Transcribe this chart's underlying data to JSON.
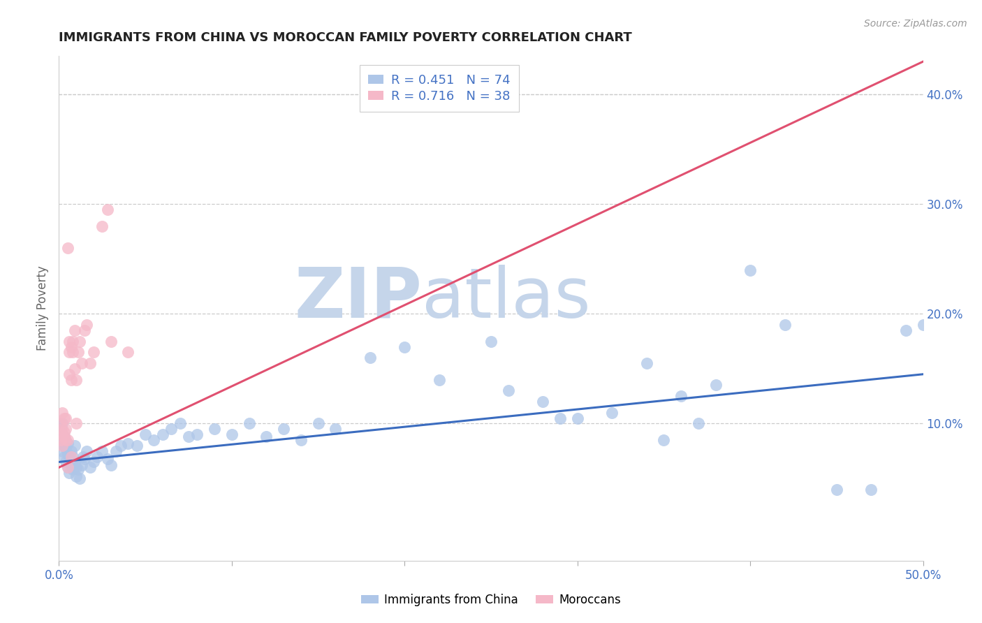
{
  "title": "IMMIGRANTS FROM CHINA VS MOROCCAN FAMILY POVERTY CORRELATION CHART",
  "source": "Source: ZipAtlas.com",
  "ylabel": "Family Poverty",
  "xlim": [
    0.0,
    0.5
  ],
  "ylim": [
    -0.025,
    0.435
  ],
  "legend_r1": "R = 0.451",
  "legend_n1": "N = 74",
  "legend_r2": "R = 0.716",
  "legend_n2": "N = 38",
  "color_china": "#aec6e8",
  "color_morocco": "#f5b8c8",
  "color_china_line": "#3b6cbf",
  "color_morocco_line": "#e05070",
  "color_text_blue": "#4472c4",
  "watermark_ZIP": "ZIP",
  "watermark_atlas": "atlas",
  "watermark_color": "#ccddf0",
  "china_line_x0": 0.0,
  "china_line_x1": 0.5,
  "china_line_y0": 0.065,
  "china_line_y1": 0.145,
  "morocco_line_x0": 0.0,
  "morocco_line_x1": 0.5,
  "morocco_line_y0": 0.06,
  "morocco_line_y1": 0.43,
  "china_x": [
    0.001,
    0.001,
    0.002,
    0.002,
    0.002,
    0.003,
    0.003,
    0.003,
    0.004,
    0.004,
    0.005,
    0.005,
    0.005,
    0.006,
    0.006,
    0.007,
    0.007,
    0.008,
    0.008,
    0.009,
    0.009,
    0.01,
    0.01,
    0.011,
    0.012,
    0.013,
    0.014,
    0.015,
    0.016,
    0.018,
    0.02,
    0.022,
    0.025,
    0.028,
    0.03,
    0.033,
    0.036,
    0.04,
    0.045,
    0.05,
    0.055,
    0.06,
    0.065,
    0.07,
    0.075,
    0.08,
    0.09,
    0.1,
    0.11,
    0.12,
    0.13,
    0.14,
    0.15,
    0.16,
    0.18,
    0.2,
    0.22,
    0.25,
    0.26,
    0.28,
    0.29,
    0.3,
    0.32,
    0.34,
    0.35,
    0.36,
    0.37,
    0.38,
    0.4,
    0.42,
    0.45,
    0.47,
    0.49,
    0.5
  ],
  "china_y": [
    0.085,
    0.095,
    0.075,
    0.09,
    0.1,
    0.07,
    0.08,
    0.088,
    0.065,
    0.078,
    0.06,
    0.072,
    0.082,
    0.055,
    0.068,
    0.062,
    0.075,
    0.058,
    0.07,
    0.065,
    0.08,
    0.052,
    0.06,
    0.058,
    0.05,
    0.062,
    0.07,
    0.068,
    0.075,
    0.06,
    0.065,
    0.07,
    0.075,
    0.068,
    0.062,
    0.075,
    0.08,
    0.082,
    0.08,
    0.09,
    0.085,
    0.09,
    0.095,
    0.1,
    0.088,
    0.09,
    0.095,
    0.09,
    0.1,
    0.088,
    0.095,
    0.085,
    0.1,
    0.095,
    0.16,
    0.17,
    0.14,
    0.175,
    0.13,
    0.12,
    0.105,
    0.105,
    0.11,
    0.155,
    0.085,
    0.125,
    0.1,
    0.135,
    0.24,
    0.19,
    0.04,
    0.04,
    0.185,
    0.19
  ],
  "morocco_x": [
    0.001,
    0.001,
    0.001,
    0.002,
    0.002,
    0.002,
    0.003,
    0.003,
    0.003,
    0.004,
    0.004,
    0.004,
    0.005,
    0.005,
    0.006,
    0.006,
    0.006,
    0.007,
    0.007,
    0.008,
    0.008,
    0.009,
    0.009,
    0.01,
    0.01,
    0.011,
    0.012,
    0.013,
    0.015,
    0.016,
    0.018,
    0.02,
    0.025,
    0.028,
    0.03,
    0.04,
    0.005,
    0.007
  ],
  "morocco_y": [
    0.09,
    0.1,
    0.085,
    0.095,
    0.08,
    0.11,
    0.088,
    0.105,
    0.092,
    0.085,
    0.105,
    0.095,
    0.26,
    0.085,
    0.145,
    0.165,
    0.175,
    0.14,
    0.17,
    0.165,
    0.175,
    0.15,
    0.185,
    0.1,
    0.14,
    0.165,
    0.175,
    0.155,
    0.185,
    0.19,
    0.155,
    0.165,
    0.28,
    0.295,
    0.175,
    0.165,
    0.06,
    0.07
  ]
}
